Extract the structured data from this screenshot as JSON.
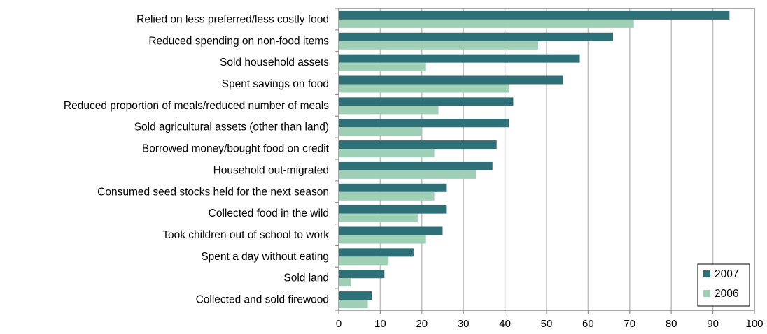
{
  "chart_data": {
    "type": "bar",
    "orientation": "horizontal",
    "title": "",
    "xlabel": "",
    "ylabel": "",
    "xlim": [
      0,
      100
    ],
    "xticks": [
      0,
      10,
      20,
      30,
      40,
      50,
      60,
      70,
      80,
      90,
      100
    ],
    "grid": true,
    "legend_position": "bottom-right",
    "categories": [
      "Relied on less preferred/less costly food",
      "Reduced spending on non-food items",
      "Sold household assets",
      "Spent savings on food",
      "Reduced proportion of meals/reduced number of meals",
      "Sold agricultural assets (other than land)",
      "Borrowed money/bought food on credit",
      "Household out-migrated",
      "Consumed seed stocks held for the next season",
      "Collected food in the wild",
      "Took children out of school to work",
      "Spent a day without eating",
      "Sold land",
      "Collected and sold firewood"
    ],
    "series": [
      {
        "name": "2007",
        "color": "#2e7077",
        "values": [
          94,
          66,
          58,
          54,
          42,
          41,
          38,
          37,
          26,
          26,
          25,
          18,
          11,
          8
        ]
      },
      {
        "name": "2006",
        "color": "#9fd0b6",
        "values": [
          71,
          48,
          21,
          41,
          24,
          20,
          23,
          33,
          23,
          19,
          21,
          12,
          3,
          7
        ]
      }
    ]
  }
}
